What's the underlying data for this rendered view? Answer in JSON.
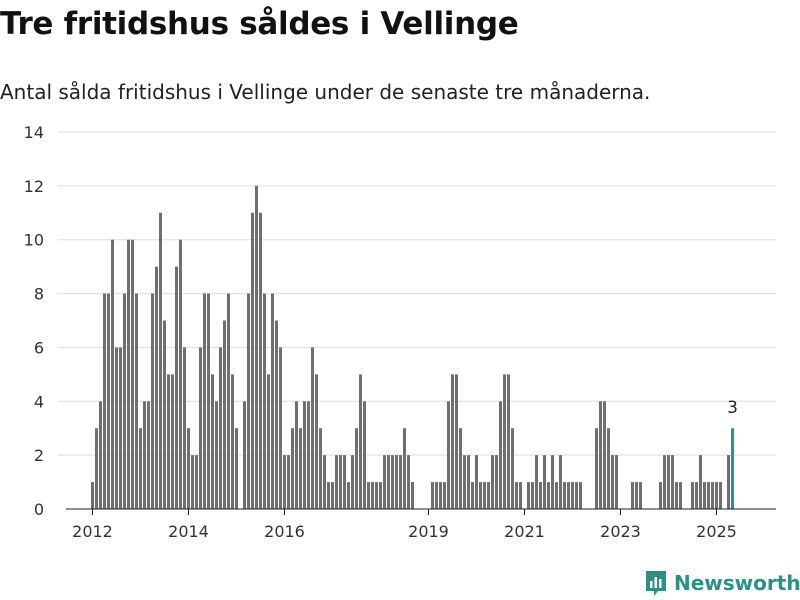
{
  "header": {
    "title": "Tre fritidshus såldes i Vellinge",
    "subtitle": "Antal sålda fritidshus i Vellinge under de senaste tre månaderna."
  },
  "brand": {
    "name": "Newsworthy"
  },
  "colors": {
    "bar": "#6f6e74",
    "highlight": "#1c9a95",
    "grid": "#dddddd",
    "brand": "#2d8f8a"
  },
  "chart_data": {
    "type": "bar",
    "title": "Tre fritidshus såldes i Vellinge",
    "subtitle": "Antal sålda fritidshus i Vellinge under de senaste tre månaderna.",
    "xlabel": "",
    "ylabel": "",
    "ylim": [
      0,
      14
    ],
    "yticks": [
      0,
      2,
      4,
      6,
      8,
      10,
      12,
      14
    ],
    "x_start": "2012-01",
    "x_tick_labels": [
      {
        "label": "2012",
        "date": "2012-01"
      },
      {
        "label": "2014",
        "date": "2014-01"
      },
      {
        "label": "2016",
        "date": "2016-01"
      },
      {
        "label": "2019",
        "date": "2019-01"
      },
      {
        "label": "2021",
        "date": "2021-01"
      },
      {
        "label": "2023",
        "date": "2023-01"
      },
      {
        "label": "2025",
        "date": "2025-01"
      }
    ],
    "grid": true,
    "highlight_last": true,
    "last_value_label": "3",
    "values": [
      1,
      3,
      4,
      8,
      8,
      10,
      6,
      6,
      8,
      10,
      10,
      8,
      3,
      4,
      4,
      8,
      9,
      11,
      7,
      5,
      5,
      9,
      10,
      6,
      3,
      2,
      2,
      6,
      8,
      8,
      5,
      4,
      6,
      7,
      8,
      5,
      3,
      0,
      4,
      8,
      11,
      12,
      11,
      8,
      5,
      8,
      7,
      6,
      2,
      2,
      3,
      4,
      3,
      4,
      4,
      6,
      5,
      3,
      2,
      1,
      1,
      2,
      2,
      2,
      1,
      2,
      3,
      5,
      4,
      1,
      1,
      1,
      1,
      2,
      2,
      2,
      2,
      2,
      3,
      2,
      1,
      0,
      0,
      0,
      0,
      1,
      1,
      1,
      1,
      4,
      5,
      5,
      3,
      2,
      2,
      1,
      2,
      1,
      1,
      1,
      2,
      2,
      4,
      5,
      5,
      3,
      1,
      1,
      0,
      1,
      1,
      2,
      1,
      2,
      1,
      2,
      1,
      2,
      1,
      1,
      1,
      1,
      1,
      0,
      0,
      0,
      3,
      4,
      4,
      3,
      2,
      2,
      0,
      0,
      0,
      1,
      1,
      1,
      0,
      0,
      0,
      0,
      1,
      2,
      2,
      2,
      1,
      1,
      0,
      0,
      1,
      1,
      2,
      1,
      1,
      1,
      1,
      1,
      0,
      2,
      3
    ]
  }
}
